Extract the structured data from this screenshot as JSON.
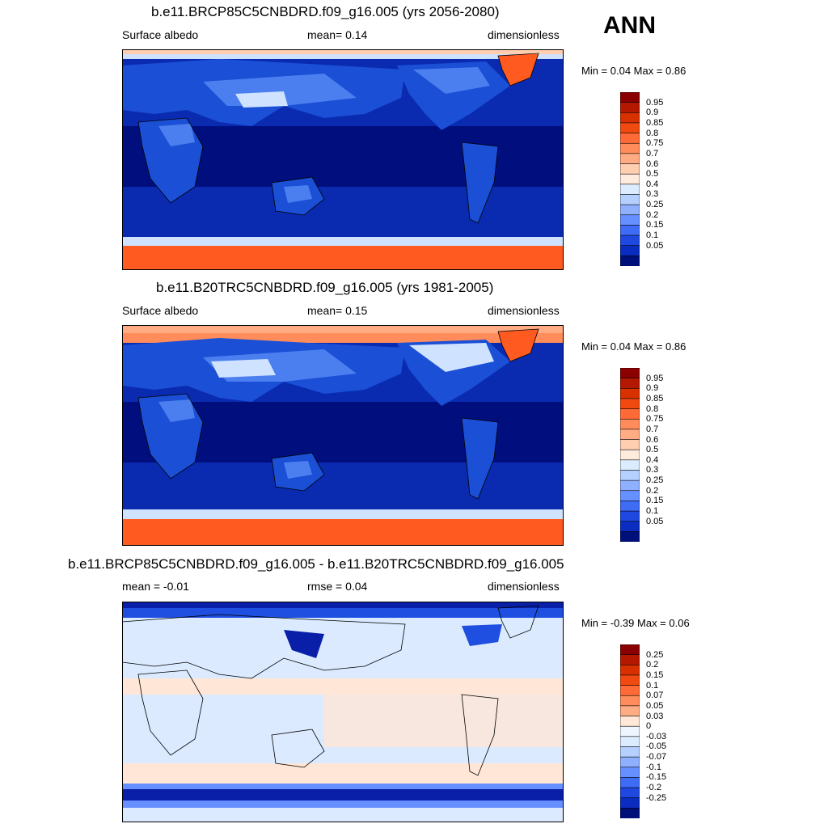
{
  "page": {
    "season": "ANN"
  },
  "panels": [
    {
      "title": "b.e11.BRCP85C5CNBDRD.f09_g16.005 (yrs 2056-2080)",
      "left_label": "Surface albedo",
      "center_label": "mean=   0.14",
      "right_label": "dimensionless",
      "minmax": "Min =   0.04 Max =   0.86",
      "mean": 0.14,
      "min": 0.04,
      "max": 0.86
    },
    {
      "title": "b.e11.B20TRC5CNBDRD.f09_g16.005 (yrs 1981-2005)",
      "left_label": "Surface albedo",
      "center_label": "mean=   0.15",
      "right_label": "dimensionless",
      "minmax": "Min =   0.04 Max =   0.86",
      "mean": 0.15,
      "min": 0.04,
      "max": 0.86
    },
    {
      "title": "b.e11.BRCP85C5CNBDRD.f09_g16.005 - b.e11.B20TRC5CNBDRD.f09_g16.005",
      "left_label": "mean =  -0.01",
      "center_label": "rmse =   0.04",
      "right_label": "dimensionless",
      "minmax": "Min =  -0.39 Max =   0.06",
      "mean": -0.01,
      "rmse": 0.04,
      "min": -0.39,
      "max": 0.06
    }
  ],
  "colorbars": {
    "abs": {
      "labels": [
        "0.95",
        "0.9",
        "0.85",
        "0.8",
        "0.75",
        "0.7",
        "0.6",
        "0.5",
        "0.4",
        "0.3",
        "0.25",
        "0.2",
        "0.15",
        "0.1",
        "0.05"
      ],
      "colors": [
        "#8b0000",
        "#b51800",
        "#d93000",
        "#f04a10",
        "#ff6a36",
        "#ff8c5a",
        "#ffac84",
        "#ffcdb0",
        "#ffeade",
        "#dcecff",
        "#b5cfff",
        "#8eb0ff",
        "#6690ff",
        "#3e6cf5",
        "#1e48e0",
        "#0a2cc0",
        "#00107a"
      ]
    },
    "diff": {
      "labels": [
        "0.25",
        "0.2",
        "0.15",
        "0.1",
        "0.07",
        "0.05",
        "0.03",
        "0",
        "-0.03",
        "-0.05",
        "-0.07",
        "-0.1",
        "-0.15",
        "-0.2",
        "-0.25"
      ],
      "colors": [
        "#8b0000",
        "#b51800",
        "#d93000",
        "#f04a10",
        "#ff6a36",
        "#ff8c5a",
        "#ffac84",
        "#ffe8d8",
        "#eef5ff",
        "#dcecff",
        "#b5cfff",
        "#8eb0ff",
        "#6690ff",
        "#3e6cf5",
        "#1e48e0",
        "#0a2cc0",
        "#00107a"
      ]
    }
  },
  "colors": {
    "ocean_deep": "#000e7e",
    "ocean_mid": "#0a2bb0",
    "land_low": "#1a4fd6",
    "land_mid": "#4b7ff0",
    "snow_light": "#cfe2ff",
    "ice_high": "#ff5a1f",
    "diff_neutral": "#dbeaff",
    "diff_pos": "#ffe6d6",
    "diff_neg": "#1f4fe0",
    "diff_neg_strong": "#0a1fa8"
  }
}
